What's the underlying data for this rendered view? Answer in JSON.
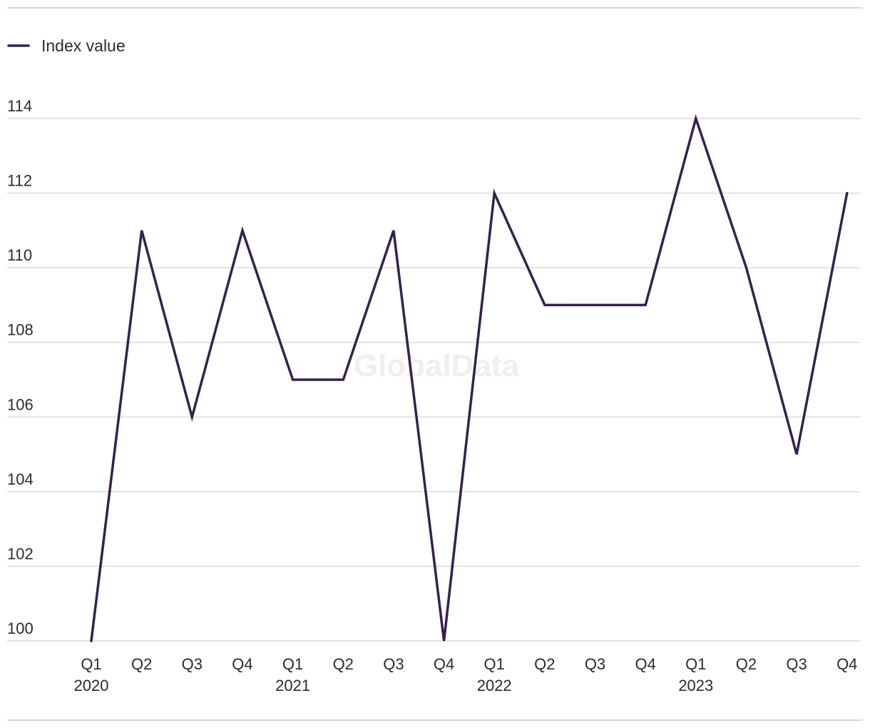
{
  "chart_data": {
    "type": "line",
    "title": "",
    "xlabel": "",
    "ylabel": "",
    "ylim": [
      100,
      114
    ],
    "yticks": [
      100,
      102,
      104,
      106,
      108,
      110,
      112,
      114
    ],
    "grid": true,
    "legend_position": "top-left",
    "quarters": [
      "Q1",
      "Q2",
      "Q3",
      "Q4",
      "Q1",
      "Q2",
      "Q3",
      "Q4",
      "Q1",
      "Q2",
      "Q3",
      "Q4",
      "Q1",
      "Q2",
      "Q3",
      "Q4"
    ],
    "years": [
      "2020",
      "",
      "",
      "",
      "2021",
      "",
      "",
      "",
      "2022",
      "",
      "",
      "",
      "2023",
      "",
      "",
      ""
    ],
    "x": [
      "Q1 2020",
      "Q2 2020",
      "Q3 2020",
      "Q4 2020",
      "Q1 2021",
      "Q2 2021",
      "Q3 2021",
      "Q4 2021",
      "Q1 2022",
      "Q2 2022",
      "Q3 2022",
      "Q4 2022",
      "Q1 2023",
      "Q2 2023",
      "Q3 2023",
      "Q4 2023"
    ],
    "series": [
      {
        "name": "Index value",
        "color": "#35204f",
        "values": [
          100,
          111,
          106,
          111,
          107,
          107,
          111,
          100,
          112,
          109,
          109,
          109,
          114,
          110,
          105,
          112
        ]
      }
    ]
  },
  "watermark": "GlobalData"
}
